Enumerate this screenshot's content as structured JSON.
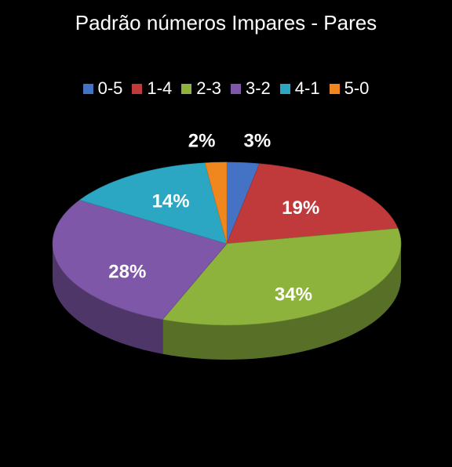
{
  "chart_data": {
    "type": "pie",
    "title": "Padrão números Impares - Pares",
    "categories": [
      "0-5",
      "1-4",
      "2-3",
      "3-2",
      "4-1",
      "5-0"
    ],
    "values": [
      3,
      19,
      34,
      28,
      14,
      2
    ],
    "labels": [
      "3%",
      "19%",
      "34%",
      "28%",
      "14%",
      "2%"
    ],
    "colors": [
      "#4472C4",
      "#C0393B",
      "#8DB33D",
      "#7E57A8",
      "#2CA7C3",
      "#F0871E"
    ],
    "legend_position": "top",
    "style": "3d"
  }
}
